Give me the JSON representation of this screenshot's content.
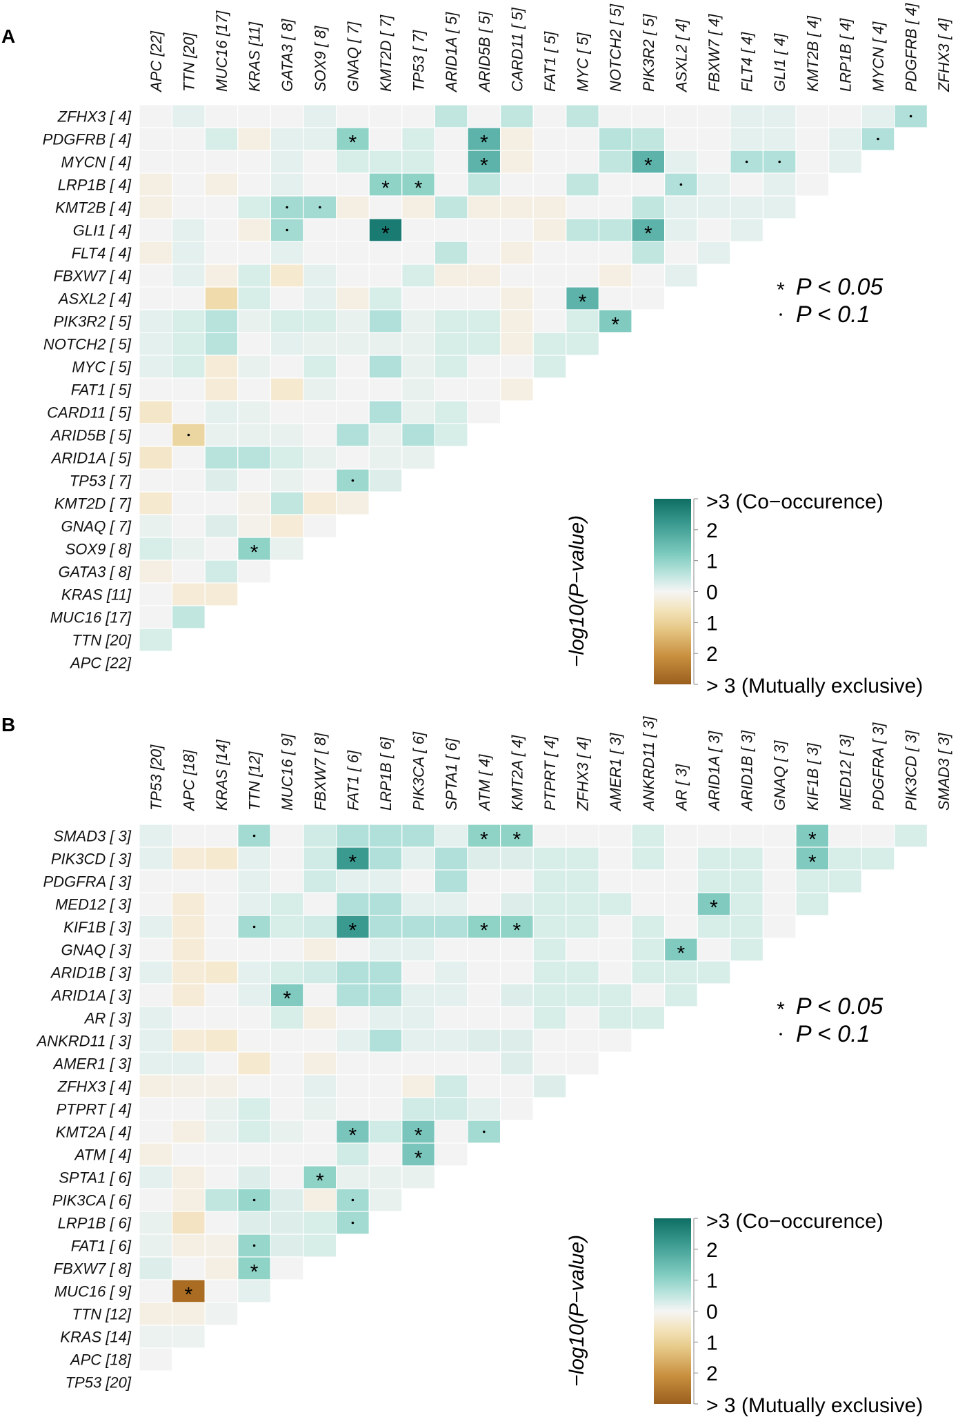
{
  "chart_data": [
    {
      "type": "heatmap",
      "panel_label": "A",
      "col_labels": [
        "APC [22]",
        "TTN [20]",
        "MUC16 [17]",
        "KRAS [11]",
        "GATA3 [ 8]",
        "SOX9 [ 8]",
        "GNAQ [ 7]",
        "KMT2D [ 7]",
        "TP53 [ 7]",
        "ARID1A [ 5]",
        "ARID5B [ 5]",
        "CARD11 [ 5]",
        "FAT1 [ 5]",
        "MYC [ 5]",
        "NOTCH2 [ 5]",
        "PIK3R2 [ 5]",
        "ASXL2 [ 4]",
        "FBXW7 [ 4]",
        "FLT4 [ 4]",
        "GLI1 [ 4]",
        "KMT2B [ 4]",
        "LRP1B [ 4]",
        "MYCN [ 4]",
        "PDGFRB [ 4]",
        "ZFHX3 [ 4]"
      ],
      "row_labels": [
        "ZFHX3 [ 4]",
        "PDGFRB [ 4]",
        "MYCN [ 4]",
        "LRP1B [ 4]",
        "KMT2B [ 4]",
        "GLI1 [ 4]",
        "FLT4 [ 4]",
        "FBXW7 [ 4]",
        "ASXL2 [ 4]",
        "PIK3R2 [ 5]",
        "NOTCH2 [ 5]",
        "MYC [ 5]",
        "FAT1 [ 5]",
        "CARD11 [ 5]",
        "ARID5B [ 5]",
        "ARID1A [ 5]",
        "TP53 [ 7]",
        "KMT2D [ 7]",
        "GNAQ [ 7]",
        "SOX9 [ 8]",
        "GATA3 [ 8]",
        "KRAS [11]",
        "MUC16 [17]",
        "TTN [20]",
        "APC [22]"
      ],
      "value_meaning": "signed -log10(P-value); positive = co-occurrence, negative = mutually exclusive",
      "values": [
        [
          0,
          0.3,
          0,
          0,
          0,
          0.3,
          0,
          0,
          0,
          0.8,
          0,
          0.8,
          0,
          0.8,
          0,
          0,
          0,
          0,
          0.3,
          0.3,
          0,
          0,
          0.3,
          1.0
        ],
        [
          0,
          0,
          0.5,
          -0.2,
          0.3,
          0.3,
          1.5,
          0,
          0.5,
          0,
          2.2,
          -0.2,
          0,
          0,
          0.9,
          0.8,
          0,
          0,
          0.3,
          0.3,
          0,
          0.3,
          1.0
        ],
        [
          0,
          0,
          0,
          0,
          0.3,
          0,
          0.5,
          0.5,
          0.5,
          0,
          2.2,
          -0.2,
          0,
          0,
          0.8,
          2.2,
          0.3,
          0,
          1.0,
          1.0,
          0,
          0.3
        ],
        [
          -0.2,
          0,
          -0.2,
          0,
          0.3,
          0,
          0,
          1.5,
          1.5,
          0,
          0.8,
          0,
          0,
          0.8,
          0,
          0,
          1.0,
          0.3,
          0,
          0.3,
          0
        ],
        [
          -0.2,
          0,
          0,
          0.5,
          1.2,
          1.2,
          -0.2,
          0,
          -0.2,
          0.8,
          -0.2,
          -0.2,
          -0.2,
          0,
          0,
          0.8,
          0.3,
          0.3,
          0.3,
          0.3
        ],
        [
          0,
          0.3,
          0,
          -0.2,
          1.2,
          0,
          0,
          3,
          0,
          0,
          0,
          0,
          -0.2,
          0.8,
          0.8,
          2.2,
          0.3,
          0,
          0.3
        ],
        [
          -0.2,
          0.3,
          0,
          0,
          0.3,
          0,
          0,
          0,
          0,
          0.8,
          0,
          -0.2,
          0,
          0,
          0,
          0.8,
          0,
          0.3
        ],
        [
          0,
          0.3,
          -0.2,
          0.5,
          -0.5,
          0.3,
          0,
          0,
          0.5,
          -0.2,
          -0.2,
          0,
          0,
          0,
          -0.2,
          0,
          0.3
        ],
        [
          0,
          0,
          -1,
          0.5,
          0,
          0.3,
          -0.2,
          0.5,
          0,
          0,
          0,
          -0.2,
          0,
          2.2,
          0,
          0
        ],
        [
          0.3,
          0.5,
          0.9,
          0.2,
          0.5,
          0.5,
          0.2,
          1.0,
          0.2,
          0.5,
          0.5,
          -0.2,
          0,
          0.5,
          1.7
        ],
        [
          0.3,
          0.5,
          0.9,
          0,
          0.3,
          0.2,
          0.2,
          0.2,
          0.2,
          0.5,
          0.5,
          -0.2,
          0.5,
          0.5
        ],
        [
          0.3,
          0.5,
          -0.4,
          0.2,
          0,
          0.5,
          0,
          1.0,
          0.2,
          0.5,
          0,
          0,
          0.5
        ],
        [
          0,
          0,
          -0.4,
          0,
          -0.5,
          0.2,
          0,
          0,
          0.2,
          0,
          0,
          -0.2
        ],
        [
          -0.6,
          0,
          0.3,
          0.2,
          0,
          0,
          0,
          1.0,
          0.2,
          0.5,
          0
        ],
        [
          0,
          -1.2,
          0.2,
          0.2,
          0.2,
          0,
          1.0,
          0.2,
          1.0,
          0.5
        ],
        [
          -0.6,
          0,
          0.9,
          0.9,
          0.5,
          0.2,
          0,
          0.2,
          0.2
        ],
        [
          0,
          0,
          0.4,
          0,
          0.2,
          0,
          1.3,
          0.4
        ],
        [
          -0.5,
          0,
          0,
          -0.1,
          0.8,
          -0.4,
          -0.2
        ],
        [
          0.2,
          0,
          0.4,
          -0.1,
          -0.4,
          0
        ],
        [
          0.5,
          0.2,
          0,
          1.5,
          0.2
        ],
        [
          -0.2,
          0,
          0.6,
          0
        ],
        [
          0,
          -0.4,
          -0.4
        ],
        [
          0,
          0.8
        ],
        [
          0.5
        ],
        []
      ],
      "marks": [
        [
          0,
          23,
          "·"
        ],
        [
          1,
          6,
          "*"
        ],
        [
          1,
          10,
          "*"
        ],
        [
          1,
          22,
          "·"
        ],
        [
          2,
          10,
          "*"
        ],
        [
          2,
          15,
          "*"
        ],
        [
          2,
          18,
          "·"
        ],
        [
          2,
          19,
          "·"
        ],
        [
          3,
          7,
          "*"
        ],
        [
          3,
          8,
          "*"
        ],
        [
          3,
          16,
          "·"
        ],
        [
          4,
          4,
          "·"
        ],
        [
          4,
          5,
          "·"
        ],
        [
          5,
          4,
          "·"
        ],
        [
          5,
          7,
          "*"
        ],
        [
          5,
          15,
          "*"
        ],
        [
          8,
          13,
          "*"
        ],
        [
          9,
          14,
          "*"
        ],
        [
          14,
          1,
          "·"
        ],
        [
          16,
          6,
          "·"
        ],
        [
          19,
          3,
          "*"
        ]
      ],
      "significance_legend": [
        {
          "symbol": "*",
          "text": "P < 0.05"
        },
        {
          "symbol": "·",
          "text": "P < 0.1"
        }
      ],
      "colorbar": {
        "title": "−log10(P−value)",
        "range": [
          -3,
          3
        ],
        "tick_labels": [
          ">3 (Co−occurence)",
          "2",
          "1",
          "0",
          "1",
          "2",
          "> 3 (Mutually exclusive)"
        ]
      }
    },
    {
      "type": "heatmap",
      "panel_label": "B",
      "col_labels": [
        "TP53 [20]",
        "APC [18]",
        "KRAS [14]",
        "TTN [12]",
        "MUC16 [ 9]",
        "FBXW7 [ 8]",
        "FAT1 [ 6]",
        "LRP1B [ 6]",
        "PIK3CA [ 6]",
        "SPTA1 [ 6]",
        "ATM [ 4]",
        "KMT2A [ 4]",
        "PTPRT [ 4]",
        "ZFHX3 [ 4]",
        "AMER1 [ 3]",
        "ANKRD11 [ 3]",
        "AR [ 3]",
        "ARID1A [ 3]",
        "ARID1B [ 3]",
        "GNAQ [ 3]",
        "KIF1B [ 3]",
        "MED12 [ 3]",
        "PDGFRA [ 3]",
        "PIK3CD [ 3]",
        "SMAD3 [ 3]"
      ],
      "row_labels": [
        "SMAD3 [ 3]",
        "PIK3CD [ 3]",
        "PDGFRA [ 3]",
        "MED12 [ 3]",
        "KIF1B [ 3]",
        "GNAQ [ 3]",
        "ARID1B [ 3]",
        "ARID1A [ 3]",
        "AR [ 3]",
        "ANKRD11 [ 3]",
        "AMER1 [ 3]",
        "ZFHX3 [ 4]",
        "PTPRT [ 4]",
        "KMT2A [ 4]",
        "ATM [ 4]",
        "SPTA1 [ 6]",
        "PIK3CA [ 6]",
        "LRP1B [ 6]",
        "FAT1 [ 6]",
        "FBXW7 [ 8]",
        "MUC16 [ 9]",
        "TTN [12]",
        "KRAS [14]",
        "APC [18]",
        "TP53 [20]"
      ],
      "value_meaning": "signed -log10(P-value); positive = co-occurrence, negative = mutually exclusive",
      "values": [
        [
          0.3,
          0,
          0,
          1.2,
          0,
          0.6,
          1.0,
          1.0,
          1.0,
          0.3,
          1.5,
          1.5,
          0,
          0,
          0,
          0.5,
          0,
          0,
          0,
          0,
          1.7,
          0,
          0,
          0.5
        ],
        [
          0.3,
          -0.4,
          -0.5,
          0.3,
          0,
          0.6,
          2.5,
          1.0,
          0.3,
          1.0,
          0.4,
          0.4,
          0.5,
          0.5,
          0,
          0.5,
          0,
          0.5,
          0.5,
          0,
          1.7,
          0.5,
          0.5
        ],
        [
          0,
          0,
          0,
          0.3,
          0,
          0.6,
          0.3,
          0.3,
          0,
          1.0,
          0,
          0,
          0.5,
          0.5,
          0,
          0,
          0,
          0.5,
          0.5,
          0,
          0.5,
          0.5
        ],
        [
          0,
          -0.4,
          0,
          0.3,
          0.5,
          0,
          1.0,
          1.0,
          0.3,
          0.3,
          0,
          0.4,
          0.5,
          0.5,
          0.5,
          0,
          0,
          1.7,
          0.5,
          0,
          0.5
        ],
        [
          0.3,
          -0.4,
          0,
          1.2,
          0.5,
          0.6,
          2.5,
          1.0,
          1.0,
          1.0,
          1.5,
          1.5,
          0.5,
          0.5,
          0,
          0.5,
          0,
          0.5,
          0.5,
          0
        ],
        [
          0,
          -0.4,
          0,
          0,
          0,
          -0.2,
          0,
          0.3,
          0.3,
          0,
          0,
          0,
          0.5,
          0,
          0,
          0.5,
          1.7,
          0,
          0.5
        ],
        [
          0.3,
          -0.4,
          -0.5,
          0.3,
          0.5,
          0.6,
          1.0,
          1.0,
          0,
          0.3,
          0,
          0,
          0.5,
          0.5,
          0,
          0.5,
          0.5,
          0.5
        ],
        [
          0,
          -0.4,
          0,
          0.3,
          1.7,
          0,
          1.0,
          1.0,
          0.3,
          0.3,
          0,
          0.4,
          0.5,
          0.5,
          0.5,
          0,
          0.5
        ],
        [
          0.3,
          0,
          0,
          0,
          0.5,
          -0.2,
          0,
          0.3,
          0.3,
          0,
          0,
          0,
          0.5,
          0,
          0.5,
          0.5
        ],
        [
          0.3,
          -0.4,
          -0.5,
          0,
          0,
          0,
          0.3,
          1.0,
          0.3,
          0.3,
          0.4,
          0.4,
          0,
          0,
          0
        ],
        [
          0.3,
          0.3,
          0,
          -0.5,
          0,
          -0.2,
          0,
          0,
          0,
          0,
          0,
          0.4,
          0,
          0
        ],
        [
          -0.2,
          -0.15,
          -0.15,
          0,
          0,
          0.3,
          0,
          0,
          -0.2,
          0.6,
          0,
          0,
          0.4
        ],
        [
          0,
          0,
          0.2,
          0.5,
          0,
          0.2,
          0,
          0,
          0.6,
          0.6,
          0.3,
          0
        ],
        [
          0,
          -0.2,
          0.2,
          0.5,
          0.2,
          0,
          1.8,
          0.6,
          1.8,
          0,
          1.2
        ],
        [
          -0.2,
          0,
          0,
          0,
          0,
          0,
          0.6,
          0,
          1.8,
          0
        ],
        [
          0.3,
          -0.2,
          0,
          0.4,
          0,
          1.5,
          0.2,
          0.2,
          0.2
        ],
        [
          0,
          -0.2,
          0.8,
          1.4,
          0.4,
          -0.2,
          1.2,
          0.2
        ],
        [
          0.2,
          -0.7,
          0,
          0.4,
          0.4,
          0.5,
          1.2
        ],
        [
          0.2,
          -0.2,
          -0.15,
          1.4,
          0.4,
          0.5
        ],
        [
          0.4,
          0,
          -0.2,
          1.5,
          0
        ],
        [
          0,
          -3,
          0,
          0.3
        ],
        [
          -0.2,
          -0.2,
          0.1
        ],
        [
          0.15,
          0.15
        ],
        [
          0
        ],
        []
      ],
      "marks": [
        [
          0,
          3,
          "·"
        ],
        [
          0,
          10,
          "*"
        ],
        [
          0,
          11,
          "*"
        ],
        [
          0,
          20,
          "*"
        ],
        [
          1,
          6,
          "*"
        ],
        [
          1,
          20,
          "*"
        ],
        [
          3,
          17,
          "*"
        ],
        [
          4,
          3,
          "·"
        ],
        [
          4,
          6,
          "*"
        ],
        [
          4,
          10,
          "*"
        ],
        [
          4,
          11,
          "*"
        ],
        [
          5,
          16,
          "*"
        ],
        [
          7,
          4,
          "*"
        ],
        [
          13,
          6,
          "*"
        ],
        [
          13,
          8,
          "*"
        ],
        [
          13,
          10,
          "·"
        ],
        [
          14,
          8,
          "*"
        ],
        [
          15,
          5,
          "*"
        ],
        [
          16,
          3,
          "·"
        ],
        [
          16,
          6,
          "·"
        ],
        [
          17,
          6,
          "·"
        ],
        [
          18,
          3,
          "·"
        ],
        [
          19,
          3,
          "*"
        ],
        [
          20,
          1,
          "*"
        ]
      ],
      "significance_legend": [
        {
          "symbol": "*",
          "text": "P < 0.05"
        },
        {
          "symbol": "·",
          "text": "P < 0.1"
        }
      ],
      "colorbar": {
        "title": "−log10(P−value)",
        "range": [
          -3,
          3
        ],
        "tick_labels": [
          ">3 (Co−occurence)",
          "2",
          "1",
          "0",
          "1",
          "2",
          "> 3 (Mutually exclusive)"
        ]
      }
    }
  ],
  "colors": {
    "co_occurrence_max": "#1a7b73",
    "neutral": "#f3f3f3",
    "mutually_exclusive_max": "#a96c22"
  }
}
